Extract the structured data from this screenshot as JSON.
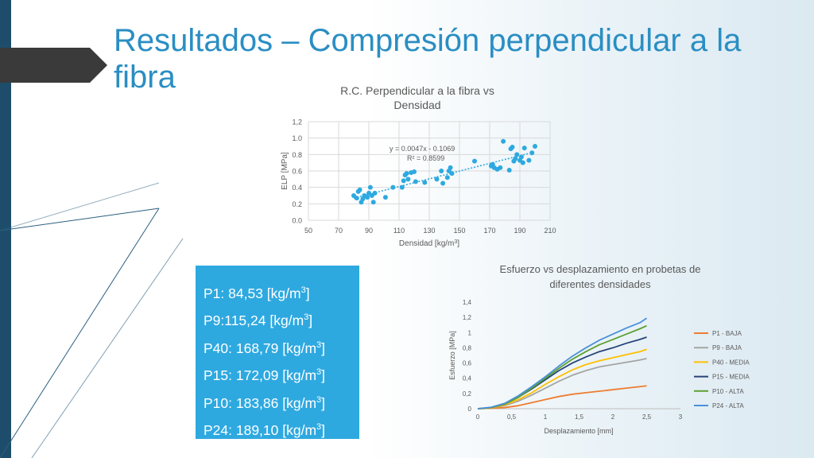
{
  "slide": {
    "title": "Resultados – Compresión perpendicular a la fibra",
    "samples": [
      {
        "label": "P1: 84,53 [kg/m",
        "sup": "3",
        "close": "]"
      },
      {
        "label": "P9:115,24 [kg/m",
        "sup": "3",
        "close": "]"
      },
      {
        "label": "P40: 168,79 [kg/m",
        "sup": "3",
        "close": "]"
      },
      {
        "label": "P15: 172,09 [kg/m",
        "sup": "3",
        "close": "]"
      },
      {
        "label": "P10: 183,86 [kg/m",
        "sup": "3",
        "close": "]"
      },
      {
        "label": "P24: 189,10 [kg/m",
        "sup": "3",
        "close": "]"
      }
    ]
  },
  "chart_data": [
    {
      "type": "scatter",
      "title": "R.C. Perpendicular a la fibra vs Densidad",
      "title_lines": [
        "R.C. Perpendicular a la fibra vs",
        "Densidad"
      ],
      "xlabel": "Densidad [kg/m",
      "xlabel_sup": "3",
      "xlabel_close": "]",
      "ylabel": "ELP [MPa]",
      "xlim": [
        50,
        210
      ],
      "ylim": [
        0,
        1.2
      ],
      "xticks": [
        50,
        70,
        90,
        110,
        130,
        150,
        170,
        190,
        210
      ],
      "yticks": [
        "0.0",
        "0.2",
        "0.4",
        "0.6",
        "0.8",
        "1.0",
        "1,2"
      ],
      "grid": true,
      "point_color": "#2ea9e0",
      "trend_color": "#2ea9e0",
      "trendline": {
        "slope": 0.0047,
        "intercept": -0.1069,
        "x_range": [
          80,
          196
        ]
      },
      "annotation_eq": "y = 0.0047x - 0.1069",
      "annotation_r2": "R² = 0.8599",
      "points": [
        [
          80,
          0.3
        ],
        [
          82,
          0.27
        ],
        [
          83,
          0.35
        ],
        [
          84,
          0.37
        ],
        [
          85,
          0.22
        ],
        [
          86,
          0.26
        ],
        [
          87,
          0.3
        ],
        [
          89,
          0.28
        ],
        [
          90,
          0.33
        ],
        [
          91,
          0.4
        ],
        [
          92,
          0.3
        ],
        [
          93,
          0.22
        ],
        [
          94,
          0.33
        ],
        [
          101,
          0.28
        ],
        [
          106,
          0.4
        ],
        [
          112,
          0.4
        ],
        [
          113,
          0.48
        ],
        [
          114,
          0.55
        ],
        [
          115,
          0.57
        ],
        [
          116,
          0.5
        ],
        [
          118,
          0.58
        ],
        [
          120,
          0.59
        ],
        [
          121,
          0.47
        ],
        [
          127,
          0.46
        ],
        [
          135,
          0.5
        ],
        [
          138,
          0.6
        ],
        [
          139,
          0.45
        ],
        [
          142,
          0.52
        ],
        [
          143,
          0.6
        ],
        [
          144,
          0.64
        ],
        [
          145,
          0.57
        ],
        [
          160,
          0.72
        ],
        [
          171,
          0.66
        ],
        [
          172,
          0.68
        ],
        [
          173,
          0.64
        ],
        [
          175,
          0.62
        ],
        [
          177,
          0.64
        ],
        [
          179,
          0.96
        ],
        [
          183,
          0.61
        ],
        [
          184,
          0.87
        ],
        [
          185,
          0.89
        ],
        [
          186,
          0.72
        ],
        [
          187,
          0.75
        ],
        [
          188,
          0.8
        ],
        [
          190,
          0.73
        ],
        [
          191,
          0.77
        ],
        [
          192,
          0.7
        ],
        [
          193,
          0.88
        ],
        [
          196,
          0.73
        ],
        [
          198,
          0.82
        ],
        [
          200,
          0.9
        ]
      ]
    },
    {
      "type": "line",
      "title": "Esfuerzo vs desplazamiento en probetas de diferentes densidades",
      "title_lines": [
        "Esfuerzo vs desplazamiento en probetas de",
        "diferentes densidades"
      ],
      "xlabel": "Desplazamiento [mm]",
      "ylabel": "Esfuerzo [MPa]",
      "xlim": [
        0,
        3
      ],
      "ylim": [
        0,
        1.4
      ],
      "xticks": [
        "0",
        "0,5",
        "1",
        "1,5",
        "2",
        "2,5",
        "3"
      ],
      "yticks": [
        "0",
        "0,2",
        "0,4",
        "0,6",
        "0,8",
        "1",
        "1,2",
        "1,4"
      ],
      "grid": false,
      "legend_position": "right",
      "x": [
        0,
        0.2,
        0.4,
        0.6,
        0.8,
        1.0,
        1.2,
        1.4,
        1.6,
        1.8,
        2.0,
        2.2,
        2.4,
        2.5
      ],
      "series": [
        {
          "name": "P1 - BAJA",
          "color": "#ed7d31",
          "values": [
            0,
            0.005,
            0.015,
            0.04,
            0.08,
            0.12,
            0.16,
            0.19,
            0.21,
            0.23,
            0.25,
            0.27,
            0.29,
            0.3
          ]
        },
        {
          "name": "P9 - BAJA",
          "color": "#a5a5a5",
          "values": [
            0,
            0.01,
            0.04,
            0.1,
            0.18,
            0.27,
            0.36,
            0.44,
            0.5,
            0.55,
            0.58,
            0.61,
            0.64,
            0.66
          ]
        },
        {
          "name": "P40 - MEDIA",
          "color": "#ffc000",
          "values": [
            0,
            0.01,
            0.05,
            0.12,
            0.21,
            0.32,
            0.42,
            0.51,
            0.58,
            0.63,
            0.67,
            0.71,
            0.75,
            0.78
          ]
        },
        {
          "name": "P15 - MEDIA",
          "color": "#264478",
          "values": [
            0,
            0.015,
            0.06,
            0.15,
            0.26,
            0.38,
            0.5,
            0.6,
            0.68,
            0.75,
            0.8,
            0.86,
            0.91,
            0.94
          ]
        },
        {
          "name": "P10 - ALTA",
          "color": "#5ca032",
          "values": [
            0,
            0.015,
            0.06,
            0.15,
            0.27,
            0.4,
            0.53,
            0.65,
            0.75,
            0.84,
            0.91,
            0.98,
            1.05,
            1.09
          ]
        },
        {
          "name": "P24 - ALTA",
          "color": "#4a90d9",
          "values": [
            0,
            0.02,
            0.07,
            0.17,
            0.29,
            0.42,
            0.56,
            0.69,
            0.8,
            0.9,
            0.98,
            1.06,
            1.13,
            1.19
          ]
        }
      ]
    }
  ]
}
